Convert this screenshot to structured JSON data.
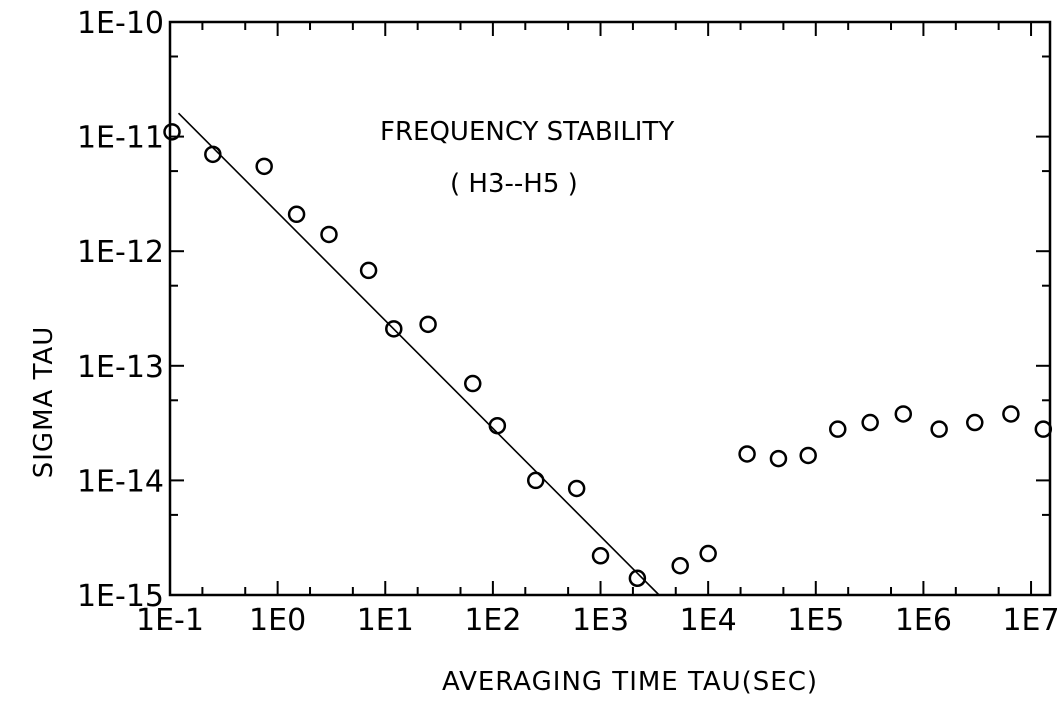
{
  "chart_data": {
    "type": "scatter",
    "title": "",
    "xlabel": "AVERAGING TIME TAU(SEC)",
    "ylabel": "SIGMA TAU",
    "x_scale": "log",
    "y_scale": "log",
    "xlim": [
      0.1,
      15000000
    ],
    "ylim": [
      1e-15,
      1e-10
    ],
    "x_ticks": [
      0.1,
      1,
      10,
      100,
      1000,
      10000,
      100000,
      1000000,
      10000000
    ],
    "x_tick_labels": [
      "1E-1",
      "1E0",
      "1E1",
      "1E2",
      "1E3",
      "1E4",
      "1E5",
      "1E6",
      "1E7"
    ],
    "y_ticks": [
      1e-10,
      1e-11,
      1e-12,
      1e-13,
      1e-14,
      1e-15
    ],
    "y_tick_labels": [
      "1E-10",
      "1E-11",
      "1E-12",
      "1E-13",
      "1E-14",
      "1E-15"
    ],
    "grid": false,
    "annotations": [
      "FREQUENCY STABILITY",
      "( H3--H5 )"
    ],
    "series": [
      {
        "marker": "open-circle",
        "points": [
          {
            "x": 0.1,
            "y": 1.1e-11
          },
          {
            "x": 0.25,
            "y": 7e-12
          },
          {
            "x": 0.75,
            "y": 5.5e-12
          },
          {
            "x": 1.5,
            "y": 2.1e-12
          },
          {
            "x": 3,
            "y": 1.4e-12
          },
          {
            "x": 7,
            "y": 6.8e-13
          },
          {
            "x": 12,
            "y": 2.1e-13
          },
          {
            "x": 25,
            "y": 2.3e-13
          },
          {
            "x": 65,
            "y": 7e-14
          },
          {
            "x": 110,
            "y": 3e-14
          },
          {
            "x": 250,
            "y": 1e-14
          },
          {
            "x": 600,
            "y": 8.5e-15
          },
          {
            "x": 1000,
            "y": 2.2e-15
          },
          {
            "x": 2200,
            "y": 1.4e-15
          },
          {
            "x": 5500,
            "y": 1.8e-15
          },
          {
            "x": 10000,
            "y": 2.3e-15
          },
          {
            "x": 23000,
            "y": 1.7e-14
          },
          {
            "x": 45000,
            "y": 1.55e-14
          },
          {
            "x": 85000,
            "y": 1.65e-14
          },
          {
            "x": 160000,
            "y": 2.8e-14
          },
          {
            "x": 320000,
            "y": 3.2e-14
          },
          {
            "x": 650000,
            "y": 3.8e-14
          },
          {
            "x": 1400000,
            "y": 2.8e-14
          },
          {
            "x": 3000000,
            "y": 3.2e-14
          },
          {
            "x": 6500000,
            "y": 3.8e-14
          },
          {
            "x": 13000000,
            "y": 2.8e-14
          }
        ]
      },
      {
        "marker": "line",
        "points": [
          {
            "x": 0.12,
            "y": 1.6e-11
          },
          {
            "x": 3500,
            "y": 1e-15
          }
        ]
      }
    ]
  }
}
